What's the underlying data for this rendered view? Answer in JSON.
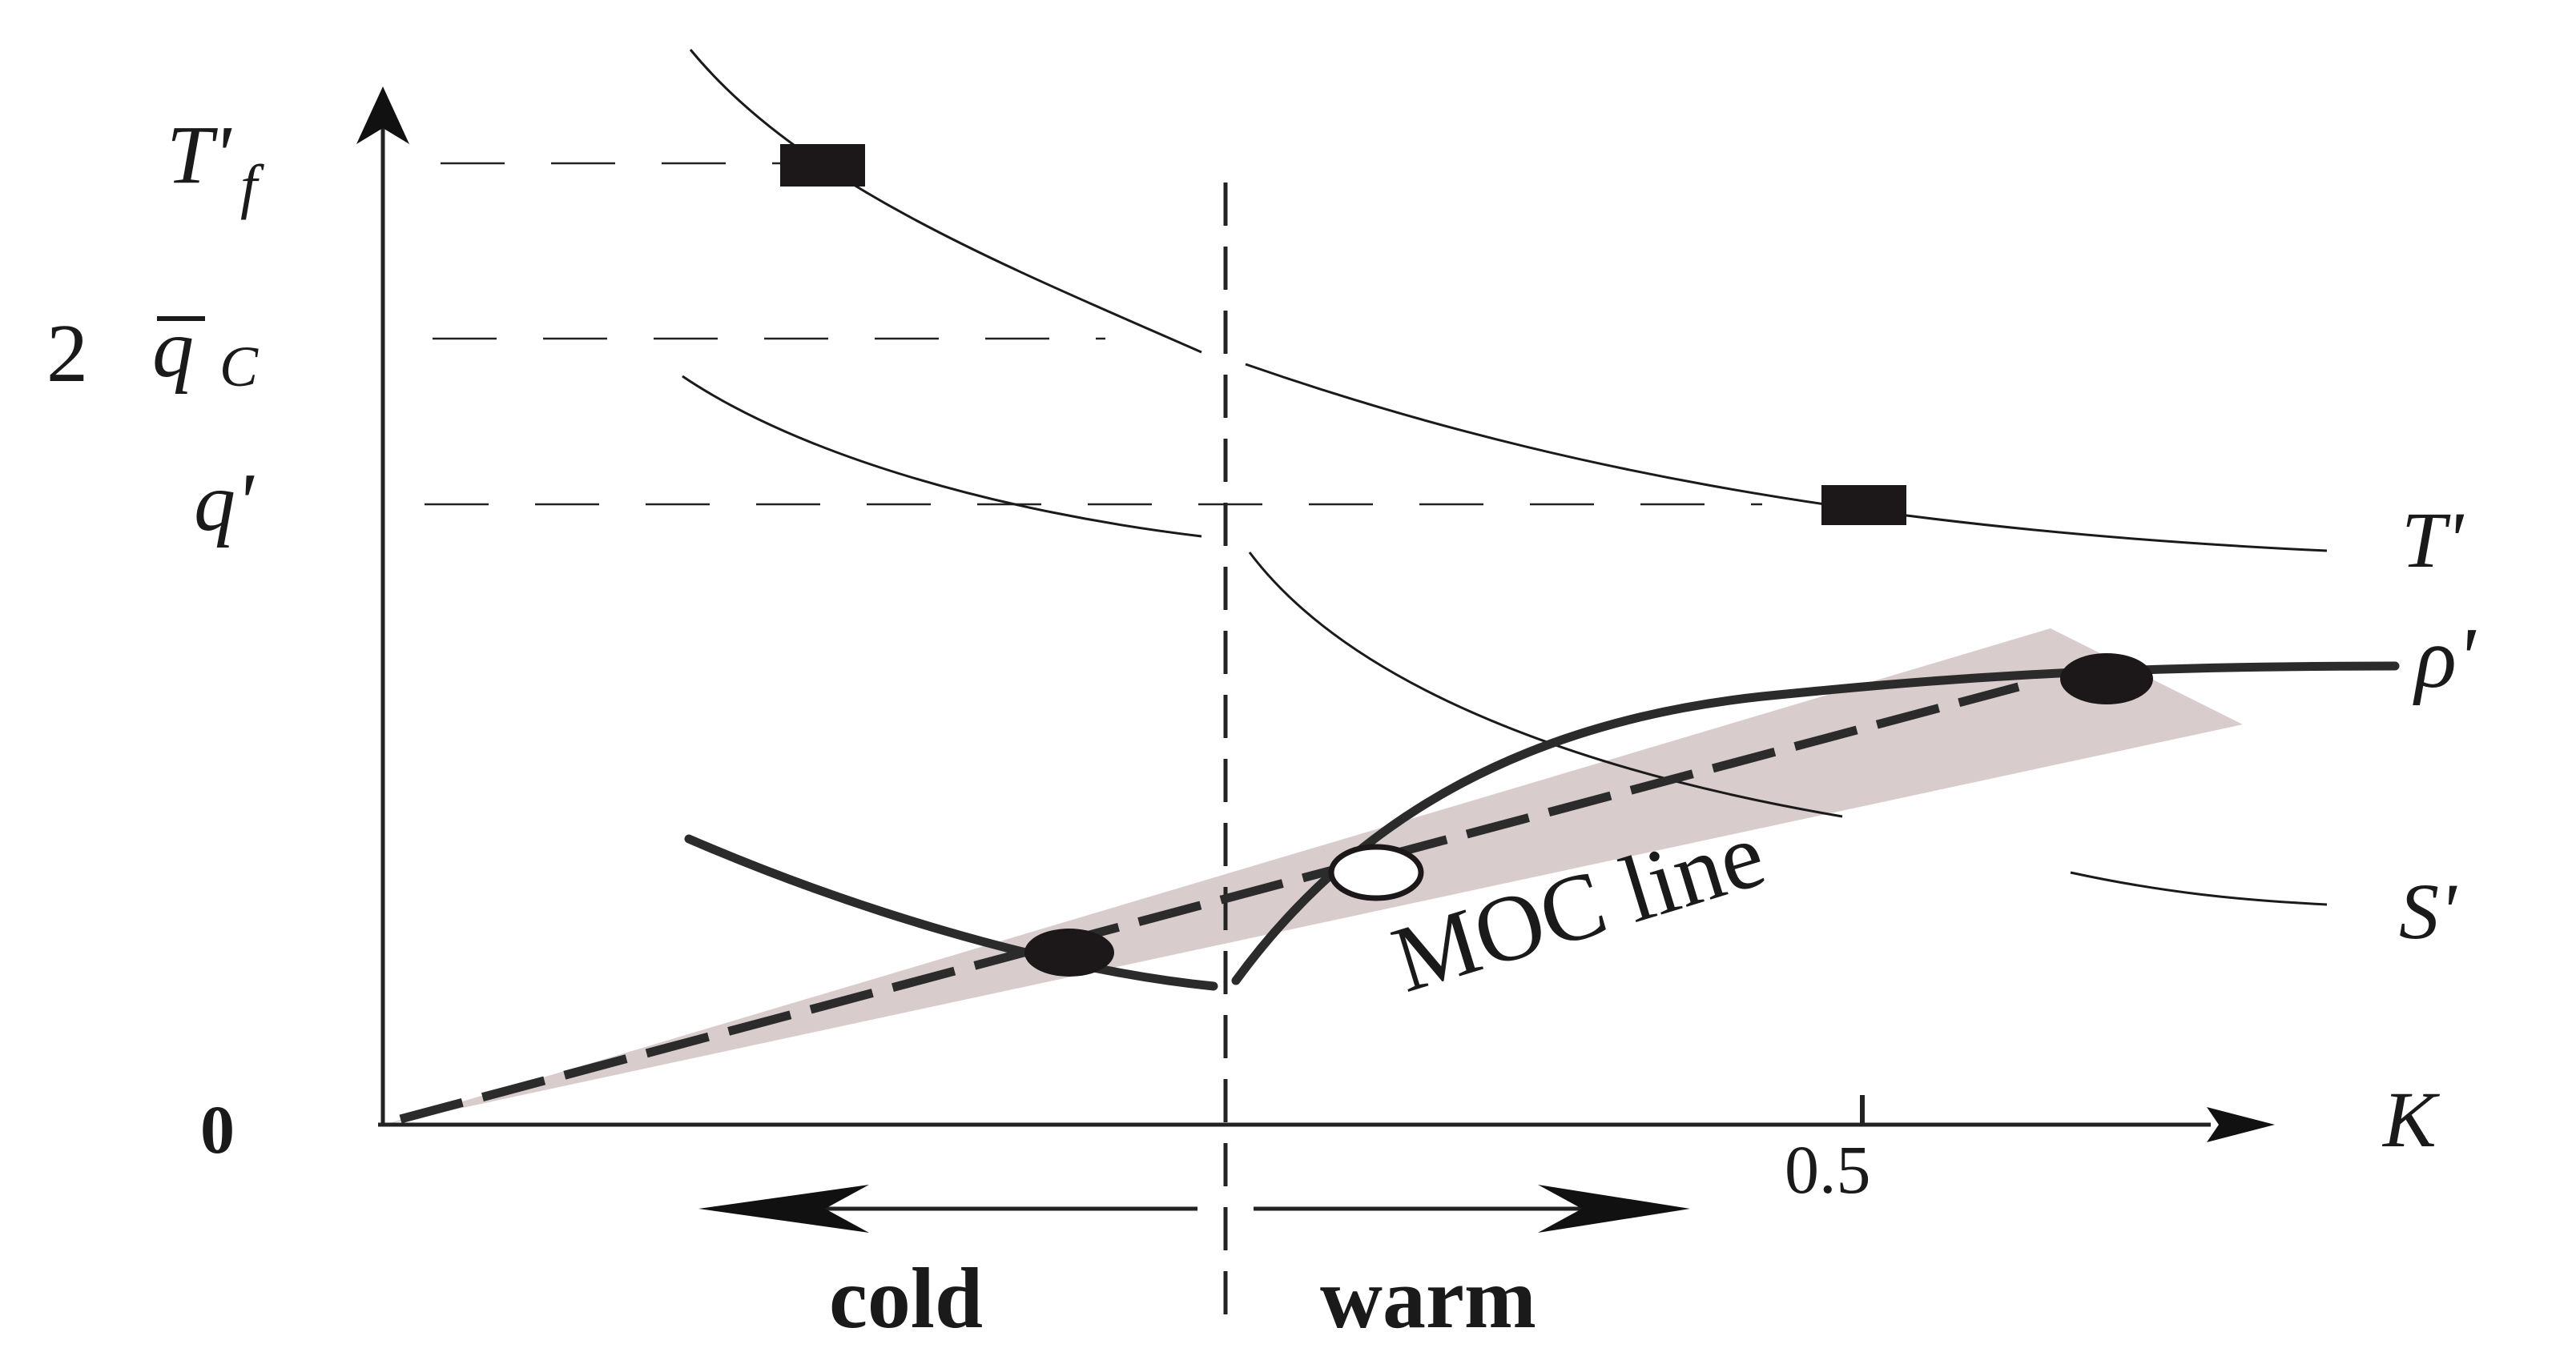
{
  "y_axis_labels": {
    "tf_prime": "T'",
    "tf_sub": "f",
    "two_qc_coef": "2",
    "two_qc_q": "q",
    "two_qc_sub": "C",
    "q_prime": "q'",
    "origin": "0"
  },
  "x_axis": {
    "symbol": "K",
    "tick_label": "0.5"
  },
  "curve_labels": {
    "t_prime": "T'",
    "rho_prime": "ρ'",
    "s_prime": "S'"
  },
  "moc_label": "MOC line",
  "regimes": {
    "cold": "cold",
    "warm": "warm"
  },
  "colors": {
    "ink": "#1a1a1a",
    "band": "#d9cccc",
    "marker": "#1c1819"
  }
}
